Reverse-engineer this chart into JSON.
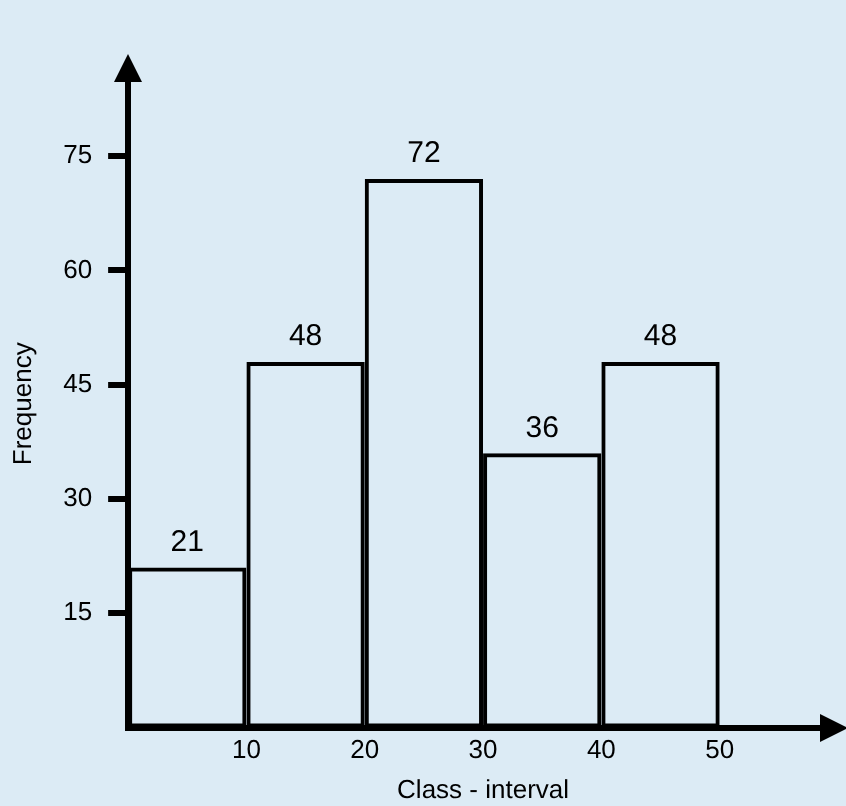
{
  "chart_data": {
    "type": "histogram",
    "xlabel": "Class - interval",
    "ylabel": "Frequency",
    "bins": [
      0,
      10,
      20,
      30,
      40,
      50
    ],
    "values": [
      21,
      48,
      72,
      36,
      48
    ],
    "color": "#000000",
    "xlim": [
      0,
      60
    ],
    "xticks": [
      10,
      20,
      30,
      40,
      50
    ],
    "ylim": [
      0,
      85
    ],
    "yticks": [
      15,
      30,
      45,
      60,
      75
    ],
    "grid": false,
    "data_labels": true
  }
}
